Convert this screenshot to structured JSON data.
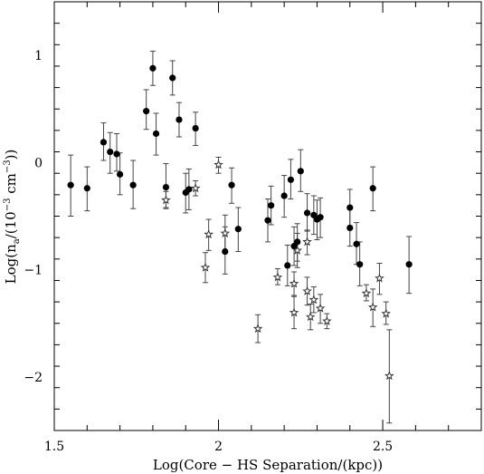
{
  "chart_data": {
    "type": "scatter",
    "title": "",
    "xlabel": "Log(Core − HS Separation/(kpc))",
    "ylabel_prefix": "Log(n",
    "ylabel_sub": "a",
    "ylabel_mid": "/(10",
    "ylabel_sup1": "−3",
    "ylabel_mid2": " cm",
    "ylabel_sup2": "−3",
    "ylabel_end": "))",
    "xlim": [
      1.5,
      2.8
    ],
    "ylim": [
      -2.5,
      1.5
    ],
    "xticks_major": [
      1.5,
      2,
      2.5
    ],
    "xtick_labels": [
      "1.5",
      "2",
      "2.5"
    ],
    "yticks_major": [
      -2,
      -1,
      0,
      1
    ],
    "ytick_labels": [
      "−2",
      "−1",
      "0",
      "1"
    ],
    "grid": false,
    "series": [
      {
        "marker": "filled-circle",
        "color": "#000000",
        "points": [
          {
            "x": 1.55,
            "y": -0.21,
            "ylo": -0.5,
            "yhi": 0.07
          },
          {
            "x": 1.6,
            "y": -0.24,
            "ylo": -0.45,
            "yhi": -0.04
          },
          {
            "x": 1.65,
            "y": 0.19,
            "ylo": 0.02,
            "yhi": 0.37
          },
          {
            "x": 1.67,
            "y": 0.1,
            "ylo": -0.1,
            "yhi": 0.28
          },
          {
            "x": 1.69,
            "y": 0.08,
            "ylo": -0.08,
            "yhi": 0.27
          },
          {
            "x": 1.7,
            "y": -0.11,
            "ylo": -0.3,
            "yhi": 0.09
          },
          {
            "x": 1.74,
            "y": -0.21,
            "ylo": -0.43,
            "yhi": 0.02
          },
          {
            "x": 1.78,
            "y": 0.48,
            "ylo": 0.31,
            "yhi": 0.68
          },
          {
            "x": 1.8,
            "y": 0.88,
            "ylo": 0.72,
            "yhi": 1.04
          },
          {
            "x": 1.81,
            "y": 0.27,
            "ylo": 0.07,
            "yhi": 0.46
          },
          {
            "x": 1.84,
            "y": -0.23,
            "ylo": -0.42,
            "yhi": -0.01
          },
          {
            "x": 1.86,
            "y": 0.79,
            "ylo": 0.63,
            "yhi": 0.95
          },
          {
            "x": 1.88,
            "y": 0.4,
            "ylo": 0.24,
            "yhi": 0.56
          },
          {
            "x": 1.9,
            "y": -0.28,
            "ylo": -0.47,
            "yhi": -0.1
          },
          {
            "x": 1.91,
            "y": -0.25,
            "ylo": -0.44,
            "yhi": -0.06
          },
          {
            "x": 1.93,
            "y": 0.32,
            "ylo": 0.16,
            "yhi": 0.47
          },
          {
            "x": 2.02,
            "y": -0.83,
            "ylo": -1.04,
            "yhi": -0.6
          },
          {
            "x": 2.04,
            "y": -0.21,
            "ylo": -0.38,
            "yhi": -0.05
          },
          {
            "x": 2.06,
            "y": -0.62,
            "ylo": -0.83,
            "yhi": -0.42
          },
          {
            "x": 2.15,
            "y": -0.54,
            "ylo": -0.74,
            "yhi": -0.34
          },
          {
            "x": 2.16,
            "y": -0.4,
            "ylo": -0.58,
            "yhi": -0.22
          },
          {
            "x": 2.2,
            "y": -0.31,
            "ylo": -0.51,
            "yhi": -0.12
          },
          {
            "x": 2.21,
            "y": -0.96,
            "ylo": -1.15,
            "yhi": -0.77
          },
          {
            "x": 2.22,
            "y": -0.16,
            "ylo": -0.34,
            "yhi": 0.03
          },
          {
            "x": 2.23,
            "y": -0.78,
            "ylo": -0.96,
            "yhi": -0.6
          },
          {
            "x": 2.24,
            "y": -0.74,
            "ylo": -0.92,
            "yhi": -0.57
          },
          {
            "x": 2.25,
            "y": -0.08,
            "ylo": -0.27,
            "yhi": 0.12
          },
          {
            "x": 2.27,
            "y": -0.47,
            "ylo": -0.64,
            "yhi": -0.29
          },
          {
            "x": 2.29,
            "y": -0.49,
            "ylo": -0.67,
            "yhi": -0.31
          },
          {
            "x": 2.3,
            "y": -0.53,
            "ylo": -0.72,
            "yhi": -0.35
          },
          {
            "x": 2.31,
            "y": -0.51,
            "ylo": -0.7,
            "yhi": -0.33
          },
          {
            "x": 2.4,
            "y": -0.42,
            "ylo": -0.59,
            "yhi": -0.25
          },
          {
            "x": 2.4,
            "y": -0.61,
            "ylo": -0.78,
            "yhi": -0.43
          },
          {
            "x": 2.42,
            "y": -0.76,
            "ylo": -0.95,
            "yhi": -0.56
          },
          {
            "x": 2.43,
            "y": -0.95,
            "ylo": -1.15,
            "yhi": -0.74
          },
          {
            "x": 2.47,
            "y": -0.24,
            "ylo": -0.45,
            "yhi": -0.04
          },
          {
            "x": 2.58,
            "y": -0.95,
            "ylo": -1.22,
            "yhi": -0.69
          }
        ]
      },
      {
        "marker": "open-star",
        "color": "#000000",
        "points": [
          {
            "x": 1.84,
            "y": -0.35,
            "ylo": -0.43,
            "yhi": -0.27
          },
          {
            "x": 1.93,
            "y": -0.24,
            "ylo": -0.31,
            "yhi": -0.17
          },
          {
            "x": 1.96,
            "y": -0.98,
            "ylo": -1.12,
            "yhi": -0.84
          },
          {
            "x": 1.97,
            "y": -0.67,
            "ylo": -0.82,
            "yhi": -0.53
          },
          {
            "x": 2.0,
            "y": -0.02,
            "ylo": -0.1,
            "yhi": 0.05
          },
          {
            "x": 2.02,
            "y": -0.66,
            "ylo": -0.83,
            "yhi": -0.49
          },
          {
            "x": 2.12,
            "y": -1.55,
            "ylo": -1.68,
            "yhi": -1.42
          },
          {
            "x": 2.18,
            "y": -1.07,
            "ylo": -1.14,
            "yhi": -0.99
          },
          {
            "x": 2.23,
            "y": -1.4,
            "ylo": -1.55,
            "yhi": -1.25
          },
          {
            "x": 2.23,
            "y": -1.13,
            "ylo": -1.24,
            "yhi": -1.02
          },
          {
            "x": 2.24,
            "y": -0.82,
            "ylo": -0.98,
            "yhi": -0.66
          },
          {
            "x": 2.27,
            "y": -1.2,
            "ylo": -1.33,
            "yhi": -1.07
          },
          {
            "x": 2.27,
            "y": -0.74,
            "ylo": -0.86,
            "yhi": -0.63
          },
          {
            "x": 2.28,
            "y": -1.44,
            "ylo": -1.56,
            "yhi": -1.32
          },
          {
            "x": 2.29,
            "y": -1.28,
            "ylo": -1.4,
            "yhi": -1.16
          },
          {
            "x": 2.31,
            "y": -1.36,
            "ylo": -1.5,
            "yhi": -1.23
          },
          {
            "x": 2.33,
            "y": -1.48,
            "ylo": -1.55,
            "yhi": -1.41
          },
          {
            "x": 2.45,
            "y": -1.22,
            "ylo": -1.29,
            "yhi": -1.14
          },
          {
            "x": 2.47,
            "y": -1.35,
            "ylo": -1.53,
            "yhi": -1.18
          },
          {
            "x": 2.49,
            "y": -1.08,
            "ylo": -1.23,
            "yhi": -0.94
          },
          {
            "x": 2.51,
            "y": -1.41,
            "ylo": -1.51,
            "yhi": -1.3
          },
          {
            "x": 2.52,
            "y": -1.99,
            "ylo": -2.43,
            "yhi": -1.56
          }
        ]
      }
    ]
  }
}
